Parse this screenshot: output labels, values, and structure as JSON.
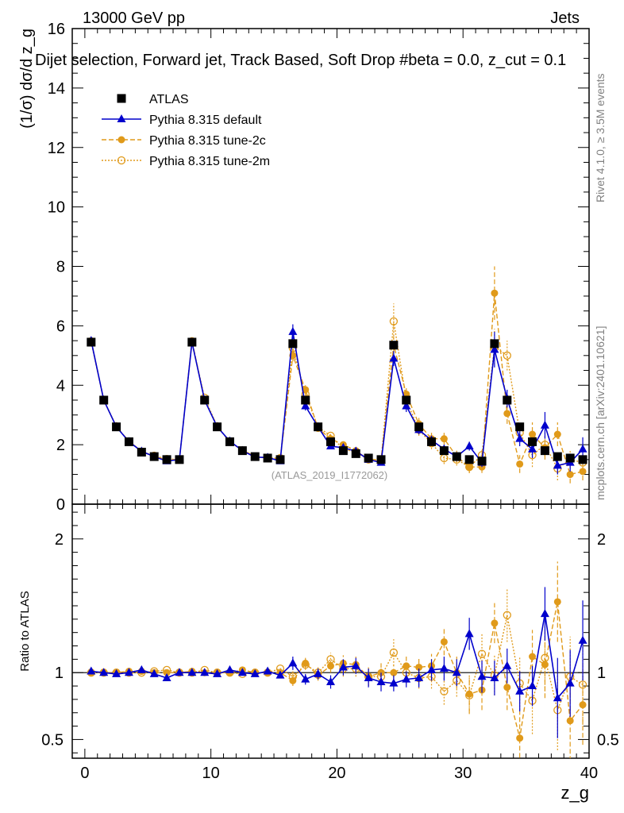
{
  "header": {
    "left": "13000 GeV pp",
    "right": "Jets",
    "subtitle": "Dijet selection, Forward jet, Track Based, Soft Drop #beta = 0.0, z_cut = 0.1"
  },
  "side_labels": {
    "rivet": "Rivet 4.1.0, ≥ 3.5M events",
    "mcplots": "mcplots.cern.ch [arXiv:2401.10621]"
  },
  "watermark": "(ATLAS_2019_I1772062)",
  "colors": {
    "atlas": "#000000",
    "default": "#0000cc",
    "tune2c": "#e09a1a",
    "tune2m": "#e09a1a"
  },
  "chart_data": [
    {
      "type": "line",
      "panel": "main",
      "ylabel": "(1/σ) dσ/d z_g",
      "xlabel": "z_g",
      "xlim": [
        -1,
        40
      ],
      "ylim": [
        0,
        16
      ],
      "yticks": [
        0,
        2,
        4,
        6,
        8,
        10,
        12,
        14,
        16
      ],
      "xticks": [
        0,
        10,
        20,
        30,
        40
      ],
      "x": [
        0.5,
        1.5,
        2.5,
        3.5,
        4.5,
        5.5,
        6.5,
        7.5,
        8.5,
        9.5,
        10.5,
        11.5,
        12.5,
        13.5,
        14.5,
        15.5,
        16.5,
        17.5,
        18.5,
        19.5,
        20.5,
        21.5,
        22.5,
        23.5,
        24.5,
        25.5,
        26.5,
        27.5,
        28.5,
        29.5,
        30.5,
        31.5,
        32.5,
        33.5,
        34.5,
        35.5,
        36.5,
        37.5,
        38.5,
        39.5
      ],
      "series": [
        {
          "name": "ATLAS",
          "style": "square",
          "values": [
            5.45,
            3.5,
            2.6,
            2.1,
            1.75,
            1.6,
            1.5,
            1.5,
            5.45,
            3.5,
            2.6,
            2.1,
            1.8,
            1.6,
            1.55,
            1.5,
            5.4,
            3.5,
            2.6,
            2.1,
            1.8,
            1.7,
            1.55,
            1.5,
            5.35,
            3.5,
            2.6,
            2.1,
            1.8,
            1.6,
            1.5,
            1.45,
            5.4,
            3.5,
            2.6,
            2.1,
            1.8,
            1.6,
            1.55,
            1.5
          ]
        },
        {
          "name": "Pythia 8.315 default",
          "style": "triangle",
          "values": [
            5.5,
            3.5,
            2.6,
            2.1,
            1.78,
            1.6,
            1.45,
            1.5,
            5.45,
            3.5,
            2.6,
            2.12,
            1.8,
            1.58,
            1.57,
            1.45,
            5.8,
            3.3,
            2.6,
            1.95,
            1.9,
            1.78,
            1.5,
            1.4,
            4.9,
            3.3,
            2.5,
            2.15,
            1.85,
            1.6,
            1.95,
            1.4,
            5.2,
            3.55,
            2.2,
            1.85,
            2.65,
            1.3,
            1.4,
            1.85
          ],
          "errors": [
            0.05,
            0.05,
            0.05,
            0.05,
            0.05,
            0.05,
            0.05,
            0.05,
            0.05,
            0.05,
            0.05,
            0.05,
            0.05,
            0.05,
            0.05,
            0.05,
            0.25,
            0.15,
            0.1,
            0.1,
            0.1,
            0.1,
            0.1,
            0.1,
            0.25,
            0.2,
            0.15,
            0.15,
            0.15,
            0.15,
            0.15,
            0.15,
            0.6,
            0.3,
            0.25,
            0.3,
            0.45,
            0.3,
            0.3,
            0.4
          ]
        },
        {
          "name": "Pythia 8.315 tune-2c",
          "style": "dot-dashed",
          "values": [
            5.5,
            3.5,
            2.6,
            2.12,
            1.78,
            1.6,
            1.5,
            1.5,
            5.5,
            3.5,
            2.62,
            2.08,
            1.83,
            1.6,
            1.55,
            1.5,
            5.0,
            3.85,
            2.55,
            2.2,
            2.0,
            1.8,
            1.5,
            1.5,
            5.35,
            3.7,
            2.7,
            2.2,
            2.2,
            1.6,
            1.25,
            1.25,
            7.1,
            3.05,
            1.35,
            2.35,
            1.9,
            2.35,
            1.0,
            1.1
          ],
          "errors": [
            0.05,
            0.05,
            0.05,
            0.05,
            0.05,
            0.05,
            0.05,
            0.05,
            0.05,
            0.05,
            0.05,
            0.05,
            0.05,
            0.05,
            0.05,
            0.05,
            0.2,
            0.15,
            0.1,
            0.1,
            0.1,
            0.1,
            0.1,
            0.1,
            0.3,
            0.2,
            0.2,
            0.2,
            0.2,
            0.2,
            0.2,
            0.2,
            0.9,
            0.35,
            0.3,
            0.4,
            0.4,
            0.4,
            0.3,
            0.3
          ]
        },
        {
          "name": "Pythia 8.315 tune-2m",
          "style": "circle-dotted",
          "values": [
            5.45,
            3.5,
            2.62,
            2.1,
            1.77,
            1.63,
            1.52,
            1.5,
            5.45,
            3.58,
            2.62,
            2.1,
            1.8,
            1.6,
            1.55,
            1.55,
            5.25,
            3.7,
            2.6,
            2.3,
            1.85,
            1.75,
            1.5,
            1.45,
            6.15,
            3.5,
            2.5,
            2.05,
            1.55,
            1.5,
            1.25,
            1.65,
            5.3,
            5.0,
            2.4,
            1.65,
            2.0,
            1.2,
            1.5,
            1.4
          ],
          "errors": [
            0.05,
            0.05,
            0.05,
            0.05,
            0.05,
            0.05,
            0.05,
            0.05,
            0.05,
            0.05,
            0.05,
            0.05,
            0.05,
            0.05,
            0.05,
            0.05,
            0.2,
            0.15,
            0.1,
            0.1,
            0.1,
            0.1,
            0.1,
            0.1,
            0.6,
            0.3,
            0.2,
            0.2,
            0.2,
            0.2,
            0.2,
            0.2,
            0.6,
            0.5,
            0.3,
            0.4,
            0.4,
            0.4,
            0.3,
            0.3
          ]
        }
      ]
    },
    {
      "type": "line",
      "panel": "ratio",
      "ylabel": "Ratio to ATLAS",
      "xlabel": "z_g",
      "ylim": [
        0.36,
        2.26
      ],
      "ytick_labels": [
        {
          "v": 0.5,
          "label": "0.5"
        },
        {
          "v": 1,
          "label": "1"
        },
        {
          "v": 2,
          "label": "2"
        }
      ],
      "x": [
        0.5,
        1.5,
        2.5,
        3.5,
        4.5,
        5.5,
        6.5,
        7.5,
        8.5,
        9.5,
        10.5,
        11.5,
        12.5,
        13.5,
        14.5,
        15.5,
        16.5,
        17.5,
        18.5,
        19.5,
        20.5,
        21.5,
        22.5,
        23.5,
        24.5,
        25.5,
        26.5,
        27.5,
        28.5,
        29.5,
        30.5,
        31.5,
        32.5,
        33.5,
        34.5,
        35.5,
        36.5,
        37.5,
        38.5,
        39.5
      ],
      "series": [
        {
          "name": "Pythia 8.315 default",
          "values": [
            1.01,
            1.0,
            0.99,
            1.0,
            1.02,
            0.99,
            0.96,
            1.0,
            1.0,
            1.0,
            0.99,
            1.02,
            1.0,
            0.99,
            1.01,
            0.98,
            1.07,
            0.95,
            0.99,
            0.93,
            1.04,
            1.05,
            0.96,
            0.93,
            0.92,
            0.95,
            0.96,
            1.02,
            1.03,
            1.0,
            1.29,
            0.97,
            0.96,
            1.05,
            0.86,
            0.9,
            1.44,
            0.81,
            0.92,
            1.24
          ],
          "errors": [
            0.01,
            0.01,
            0.01,
            0.01,
            0.01,
            0.01,
            0.01,
            0.01,
            0.01,
            0.01,
            0.01,
            0.01,
            0.01,
            0.01,
            0.01,
            0.01,
            0.05,
            0.04,
            0.04,
            0.05,
            0.06,
            0.06,
            0.07,
            0.07,
            0.06,
            0.06,
            0.07,
            0.08,
            0.09,
            0.1,
            0.12,
            0.12,
            0.13,
            0.13,
            0.15,
            0.15,
            0.2,
            0.3,
            0.25,
            0.3
          ]
        },
        {
          "name": "Pythia 8.315 tune-2c",
          "values": [
            1.0,
            1.0,
            1.0,
            1.01,
            1.01,
            1.0,
            1.0,
            1.0,
            1.01,
            1.0,
            1.0,
            1.0,
            1.02,
            1.0,
            1.0,
            1.0,
            0.94,
            1.07,
            0.98,
            1.05,
            1.07,
            1.06,
            0.97,
            1.0,
            1.0,
            1.05,
            1.04,
            1.05,
            1.23,
            1.0,
            0.84,
            0.87,
            1.37,
            0.89,
            0.51,
            1.12,
            1.06,
            1.53,
            0.64,
            0.76
          ],
          "errors": [
            0.01,
            0.01,
            0.01,
            0.01,
            0.01,
            0.01,
            0.01,
            0.01,
            0.01,
            0.01,
            0.01,
            0.01,
            0.01,
            0.01,
            0.01,
            0.01,
            0.04,
            0.04,
            0.04,
            0.05,
            0.06,
            0.06,
            0.07,
            0.07,
            0.06,
            0.07,
            0.08,
            0.09,
            0.1,
            0.12,
            0.14,
            0.15,
            0.15,
            0.17,
            0.2,
            0.2,
            0.25,
            0.3,
            0.3,
            0.3
          ]
        },
        {
          "name": "Pythia 8.315 tune-2m",
          "values": [
            1.0,
            1.0,
            1.0,
            1.0,
            1.0,
            1.01,
            1.02,
            1.0,
            1.0,
            1.02,
            1.0,
            1.0,
            0.99,
            1.0,
            1.0,
            1.03,
            0.97,
            1.06,
            1.0,
            1.1,
            1.03,
            1.03,
            0.97,
            0.97,
            1.15,
            1.0,
            0.96,
            0.97,
            0.86,
            0.94,
            0.83,
            1.14,
            0.98,
            1.43,
            0.92,
            0.79,
            1.11,
            0.72,
            0.97,
            0.91
          ],
          "errors": [
            0.01,
            0.01,
            0.01,
            0.01,
            0.01,
            0.01,
            0.01,
            0.01,
            0.01,
            0.01,
            0.01,
            0.01,
            0.01,
            0.01,
            0.01,
            0.01,
            0.04,
            0.04,
            0.04,
            0.05,
            0.06,
            0.06,
            0.07,
            0.07,
            0.1,
            0.08,
            0.08,
            0.09,
            0.1,
            0.12,
            0.14,
            0.15,
            0.15,
            0.2,
            0.2,
            0.25,
            0.25,
            0.3,
            0.3,
            0.3
          ]
        }
      ]
    }
  ],
  "legend": [
    {
      "label": "ATLAS"
    },
    {
      "label": "Pythia 8.315 default"
    },
    {
      "label": "Pythia 8.315 tune-2c"
    },
    {
      "label": "Pythia 8.315 tune-2m"
    }
  ]
}
